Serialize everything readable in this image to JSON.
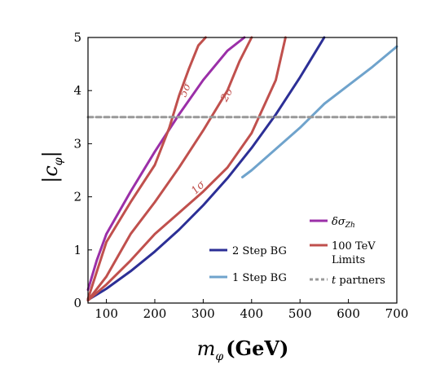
{
  "chart_data": {
    "type": "line",
    "xlabel": "m_φ (GeV)",
    "ylabel": "|c_φ|",
    "xlim": [
      62,
      700
    ],
    "ylim": [
      0,
      5
    ],
    "x_ticks": [
      "100",
      "200",
      "300",
      "400",
      "500",
      "600",
      "700"
    ],
    "y_ticks": [
      "0",
      "1",
      "2",
      "3",
      "4",
      "5"
    ],
    "grid": false,
    "legend_placement": "lower-right",
    "colors": {
      "two_step": "#2c2f96",
      "one_step": "#6fa3cc",
      "delta_sigma": "#9b2fa8",
      "limits": "#c0504d",
      "t_partners": "#999999"
    },
    "series": [
      {
        "name": "2 Step BG",
        "x": [
          62,
          100,
          150,
          200,
          250,
          300,
          350,
          400,
          450,
          500,
          550
        ],
        "y": [
          0.06,
          0.27,
          0.6,
          0.97,
          1.38,
          1.84,
          2.35,
          2.92,
          3.55,
          4.25,
          5.0
        ]
      },
      {
        "name": "1 Step BG",
        "x": [
          381,
          400,
          450,
          500,
          550,
          600,
          650,
          700
        ],
        "y": [
          2.37,
          2.5,
          2.9,
          3.3,
          3.75,
          4.1,
          4.45,
          4.83
        ]
      },
      {
        "name": "δσ_Zh",
        "x": [
          62,
          80,
          100,
          150,
          200,
          250,
          300,
          350,
          385
        ],
        "y": [
          0.25,
          0.8,
          1.3,
          2.1,
          2.85,
          3.55,
          4.2,
          4.75,
          5.0
        ]
      },
      {
        "name": "5σ",
        "label": "5σ",
        "x": [
          62,
          100,
          150,
          200,
          230,
          250,
          270,
          290,
          305
        ],
        "y": [
          0.08,
          1.15,
          1.9,
          2.6,
          3.3,
          3.9,
          4.4,
          4.85,
          5.0
        ]
      },
      {
        "name": "2σ",
        "label": "2σ",
        "x": [
          62,
          100,
          150,
          200,
          250,
          300,
          350,
          375,
          400
        ],
        "y": [
          0.05,
          0.5,
          1.3,
          1.9,
          2.55,
          3.25,
          4.0,
          4.55,
          5.0
        ]
      },
      {
        "name": "1σ",
        "label": "1σ",
        "x": [
          62,
          100,
          150,
          200,
          250,
          300,
          350,
          400,
          450,
          470
        ],
        "y": [
          0.05,
          0.35,
          0.8,
          1.3,
          1.7,
          2.1,
          2.55,
          3.2,
          4.2,
          5.0
        ]
      },
      {
        "name": "t partners",
        "x": [
          62,
          700
        ],
        "y": [
          3.5,
          3.5
        ]
      }
    ],
    "legend": {
      "delta_sigma": "δσ",
      "delta_sigma_sub": "Zh",
      "limits_line1": "100  TeV",
      "limits_line2": "Limits",
      "t_partners_italic": "t",
      "t_partners_rest": " partners",
      "two_step": "2 Step BG",
      "one_step": "1 Step BG"
    },
    "axis_text": {
      "x_main": "m",
      "x_sub": "φ",
      "x_unit": "(GeV)",
      "y_main": "|c",
      "y_sub": "φ",
      "y_close": "|"
    }
  }
}
